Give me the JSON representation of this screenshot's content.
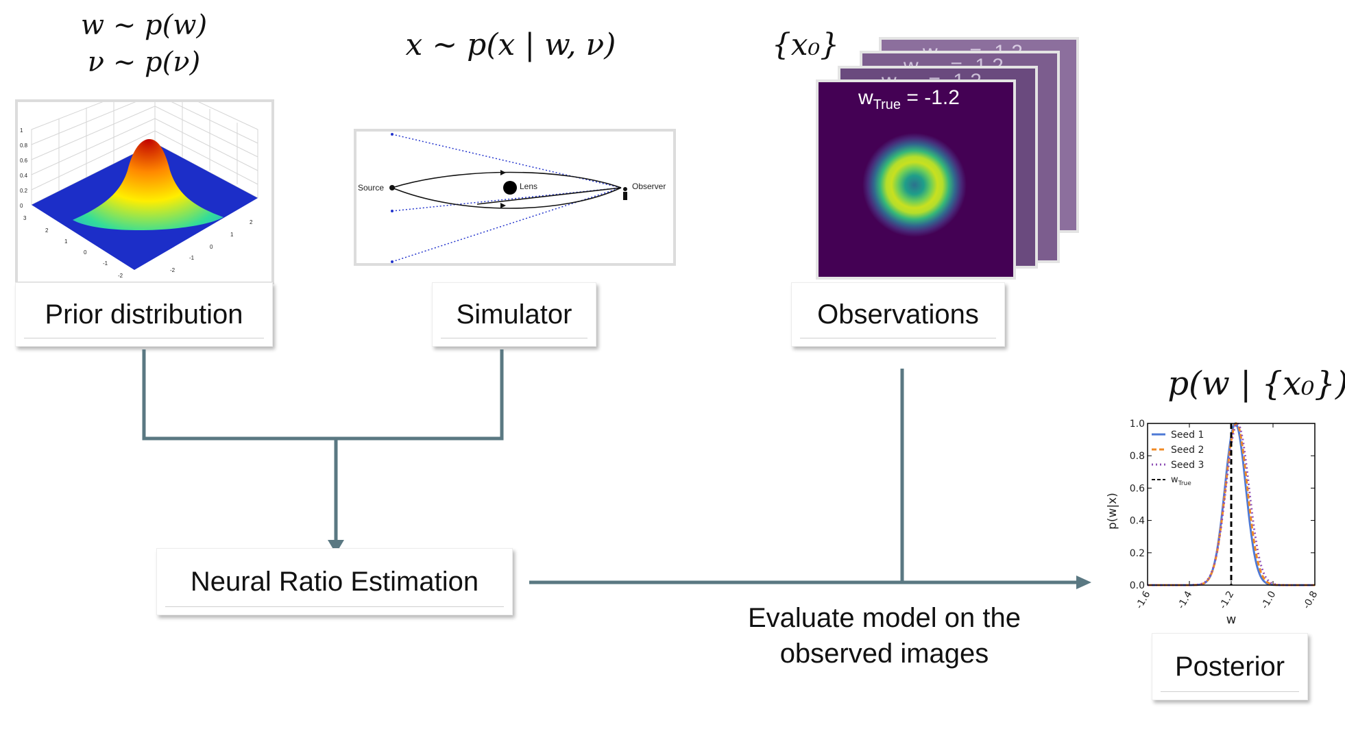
{
  "prior": {
    "math_line1": "w ∼ p(w)",
    "math_line2": "ν ∼ p(ν)",
    "label": "Prior distribution",
    "z_ticks": [
      "1",
      "0.8",
      "0.6",
      "0.4",
      "0.2",
      "0"
    ],
    "x_ticks": [
      "3",
      "2",
      "1",
      "0",
      "-1",
      "-2"
    ],
    "y_ticks": [
      "2",
      "1",
      "0",
      "-1",
      "-2"
    ]
  },
  "simulator": {
    "math": "x ∼ p(x | w, ν)",
    "label": "Simulator",
    "source_label": "Source",
    "lens_label": "Lens",
    "observer_label": "Observer"
  },
  "observations": {
    "math": "{x₀}",
    "label": "Observations",
    "frame_title": "w",
    "frame_sub": "True",
    "frame_value": "= -1.2"
  },
  "nre": {
    "label": "Neural Ratio Estimation"
  },
  "evaluate": {
    "line1": "Evaluate model on the",
    "line2": "observed images"
  },
  "posterior": {
    "math": "p(w | {x₀})",
    "label": "Posterior",
    "chart_data": {
      "type": "line",
      "xlabel": "w",
      "ylabel": "p(w|x)",
      "xlim": [
        -1.6,
        -0.8
      ],
      "ylim": [
        0.0,
        1.0
      ],
      "x_ticks": [
        "-1.6",
        "-1.4",
        "-1.2",
        "-1.0",
        "-0.8"
      ],
      "y_ticks": [
        "0.0",
        "0.2",
        "0.4",
        "0.6",
        "0.8",
        "1.0"
      ],
      "legend_position": "top-left",
      "series": [
        {
          "name": "Seed 1",
          "color": "#4e79d6",
          "style": "solid",
          "mean": -1.18,
          "sd": 0.05
        },
        {
          "name": "Seed 2",
          "color": "#f08a24",
          "style": "dashed",
          "mean": -1.175,
          "sd": 0.052
        },
        {
          "name": "Seed 3",
          "color": "#8e4fb5",
          "style": "dotted",
          "mean": -1.17,
          "sd": 0.055
        }
      ],
      "vline": {
        "name": "w",
        "sub": "True",
        "value": -1.2,
        "color": "#000000",
        "style": "dashed"
      }
    }
  },
  "colors": {
    "arrow": "#5a7882",
    "viridis_bg": "#440154",
    "frame_stack": "#8a6a99"
  }
}
